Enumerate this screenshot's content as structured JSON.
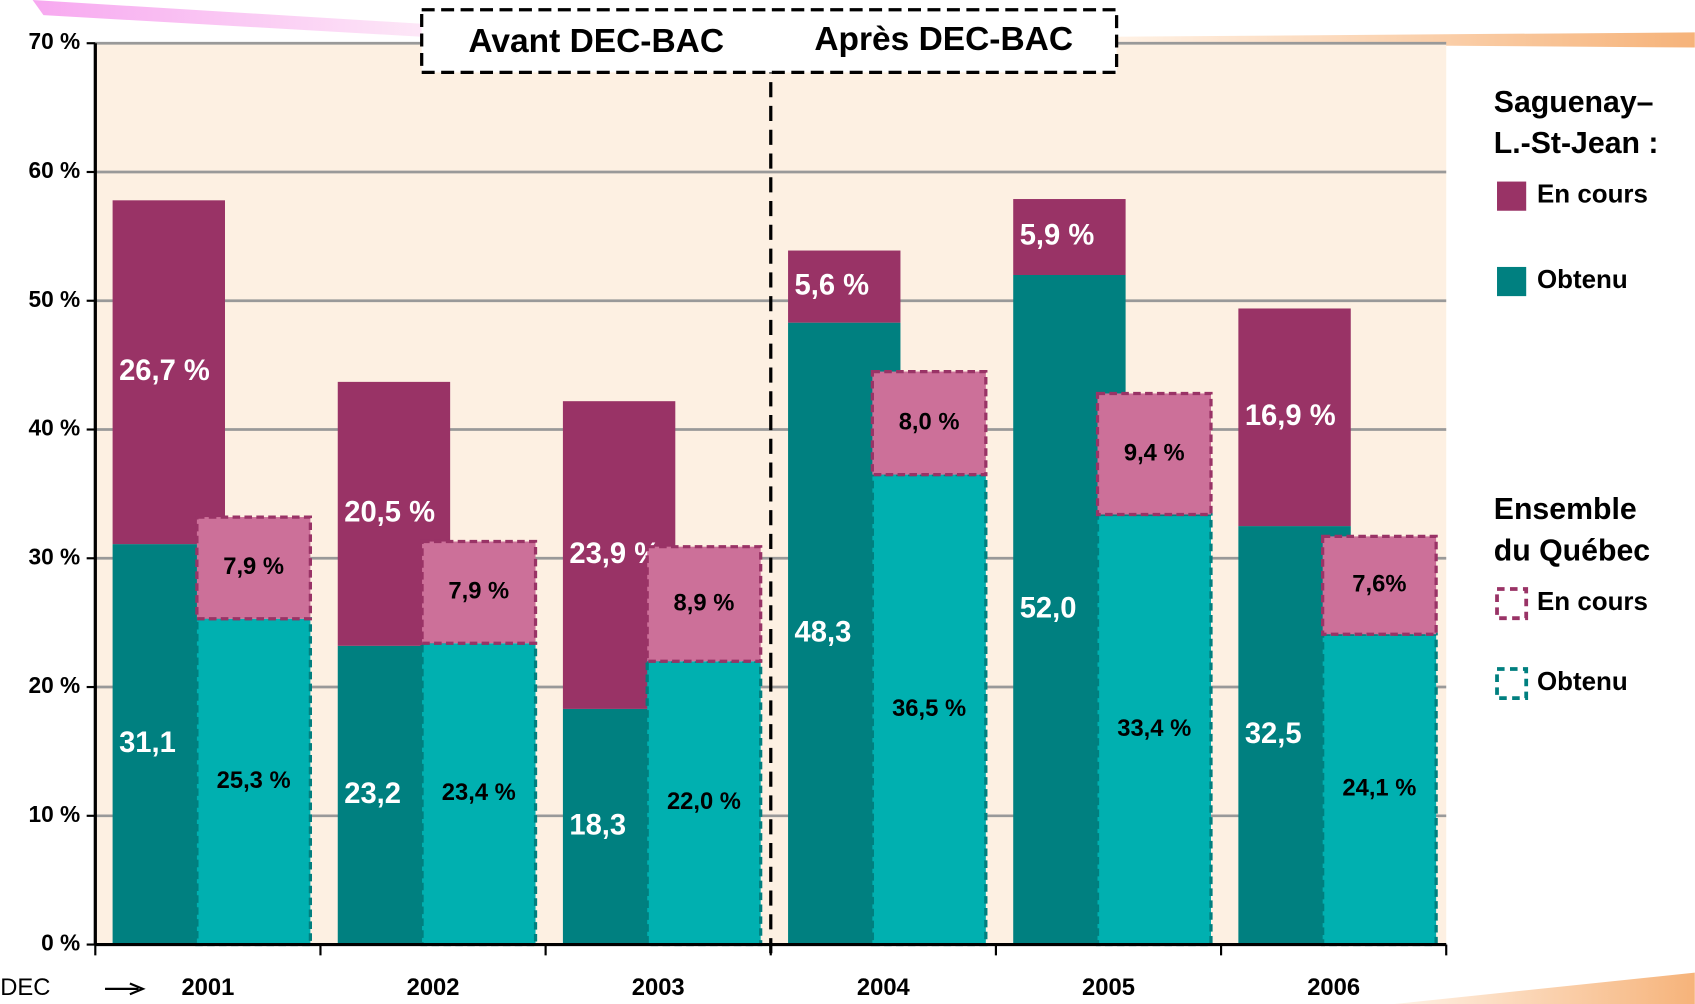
{
  "chart_data": {
    "type": "bar",
    "stacked": true,
    "x_label_prefix": "DEC",
    "categories": [
      "2001",
      "2002",
      "2003",
      "2004",
      "2005",
      "2006"
    ],
    "periods": [
      "Avant DEC-BAC",
      "Après DEC-BAC"
    ],
    "ylim": [
      0,
      70
    ],
    "yticks": [
      {
        "value": 0,
        "label": "0 %"
      },
      {
        "value": 10,
        "label": "10 %"
      },
      {
        "value": 20,
        "label": "20 %"
      },
      {
        "value": 30,
        "label": "30 %"
      },
      {
        "value": 40,
        "label": "40 %"
      },
      {
        "value": 50,
        "label": "50 %"
      },
      {
        "value": 60,
        "label": "60 %"
      },
      {
        "value": 70,
        "label": "70 %"
      }
    ],
    "grid": true,
    "background": "#fdf0e2",
    "groups": [
      {
        "title_lines": [
          "Saguenay–",
          "L.-St-Jean :"
        ],
        "style": "solid",
        "label_color": "#ffffff",
        "series": [
          {
            "name": "Obtenu",
            "color": "#008080",
            "border": "#008080",
            "values": [
              31.1,
              23.2,
              18.3,
              48.3,
              52.0,
              32.5
            ],
            "value_labels": [
              "31,1",
              "23,2",
              "18,3",
              "48,3",
              "52,0",
              "32,5"
            ]
          },
          {
            "name": "En cours",
            "color": "#993366",
            "border": "#993366",
            "values": [
              26.7,
              20.5,
              23.9,
              5.6,
              5.9,
              16.9
            ],
            "value_labels": [
              "26,7 %",
              "20,5 %",
              "23,9 %",
              "5,6 %",
              "5,9 %",
              "16,9 %"
            ]
          }
        ]
      },
      {
        "title_lines": [
          "Ensemble",
          "du Québec"
        ],
        "style": "dashed",
        "label_color": "#000000",
        "series": [
          {
            "name": "Obtenu",
            "color": "#00b0b0",
            "border": "#007f7f",
            "values": [
              25.3,
              23.4,
              22.0,
              36.5,
              33.4,
              24.1
            ],
            "value_labels": [
              "25,3 %",
              "23,4 %",
              "22,0 %",
              "36,5 %",
              "33,4 %",
              "24,1 %"
            ]
          },
          {
            "name": "En cours",
            "color": "#cc7099",
            "border": "#993366",
            "values": [
              7.9,
              7.9,
              8.9,
              8.0,
              9.4,
              7.6
            ],
            "value_labels": [
              "7,9 %",
              "7,9 %",
              "8,9 %",
              "8,0 %",
              "9,4 %",
              "7,6%"
            ]
          }
        ]
      }
    ]
  }
}
